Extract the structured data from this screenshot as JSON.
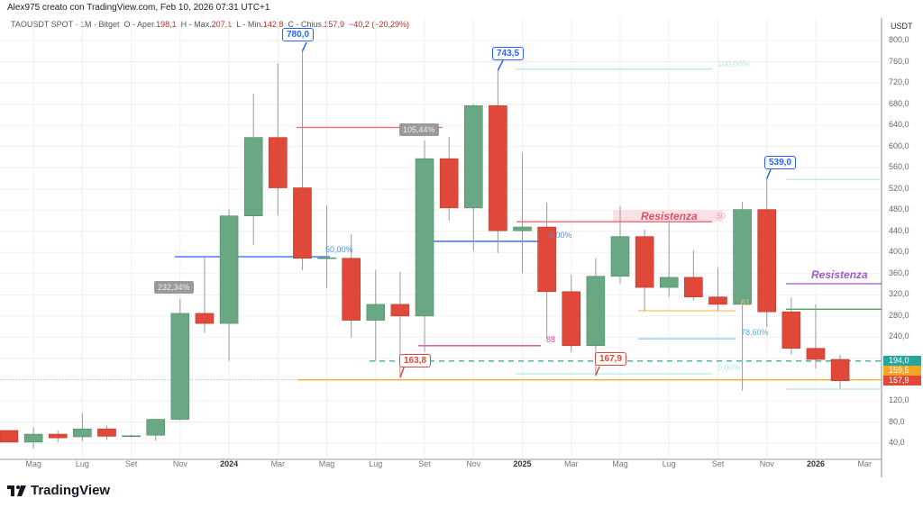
{
  "header": {
    "text": "Alex975 creato con TradingView.com, Feb 10, 2026 07:31 UTC+1"
  },
  "legend": {
    "symbol": "TAOUSDT SPOT · 1M · Bitget",
    "o_label": "O - Aper.",
    "o": "198,1",
    "h_label": "H - Max.",
    "h": "207,1",
    "l_label": "L - Min.",
    "l": "142,8",
    "c_label": "C - Chius.",
    "c": "157,9",
    "change": "−40,2 (−20,29%)"
  },
  "axis": {
    "unit": "USDT",
    "prices": [
      "800,0",
      "760,0",
      "720,0",
      "680,0",
      "640,0",
      "600,0",
      "560,0",
      "520,0",
      "480,0",
      "440,0",
      "400,0",
      "360,0",
      "320,0",
      "280,0",
      "240,0",
      "120,0",
      "80,0",
      "40,0"
    ],
    "months": [
      "Mag",
      "Lug",
      "Set",
      "Nov",
      "2024",
      "Mar",
      "Mag",
      "Lug",
      "Set",
      "Nov",
      "2025",
      "Mar",
      "Mag",
      "Lug",
      "Set",
      "Nov",
      "2026",
      "Mar"
    ]
  },
  "price_tags": [
    {
      "text": "194,0",
      "color": "#26a69a"
    },
    {
      "text": "159,5",
      "color": "#f5a623"
    },
    {
      "text": "157,9",
      "color": "#e0483a"
    }
  ],
  "annotations": {
    "callouts": [
      "780,0",
      "743,5",
      "539,0",
      "163,8",
      "167,9"
    ],
    "pct": [
      "232,34%",
      "105,44%"
    ],
    "fib": [
      "50,00%",
      "0,00%",
      "88",
      "50",
      "78,60%",
      "100,00%",
      "0,00%",
      "61"
    ],
    "resistance": [
      "Resistenza",
      "Resistenza"
    ]
  },
  "colors": {
    "up": "#6aa884",
    "down": "#e0483a"
  },
  "chart_data": {
    "type": "candlestick",
    "timeframe": "1M",
    "ylim": [
      20,
      820
    ],
    "candles": [
      [
        64,
        64,
        42,
        42
      ],
      [
        42,
        70,
        30,
        57
      ],
      [
        57,
        64,
        42,
        50
      ],
      [
        52,
        97,
        44,
        67
      ],
      [
        67,
        73,
        46,
        53
      ],
      [
        53,
        56,
        51,
        54
      ],
      [
        55,
        86,
        45,
        85
      ],
      [
        85,
        312,
        83,
        285
      ],
      [
        285,
        392,
        248,
        266
      ],
      [
        266,
        481,
        195,
        469
      ],
      [
        469,
        700,
        414,
        617
      ],
      [
        617,
        757,
        470,
        522
      ],
      [
        522,
        780,
        367,
        389
      ],
      [
        389,
        489,
        333,
        390
      ],
      [
        389,
        434,
        239,
        272
      ],
      [
        272,
        367,
        195,
        302
      ],
      [
        302,
        363,
        163.8,
        280
      ],
      [
        280,
        611,
        212,
        577
      ],
      [
        577,
        618,
        460,
        484
      ],
      [
        484,
        680,
        402,
        677
      ],
      [
        677,
        743.5,
        399,
        441
      ],
      [
        441,
        588,
        361,
        448
      ],
      [
        448,
        494,
        237,
        326
      ],
      [
        326,
        358,
        212,
        224
      ],
      [
        224,
        389,
        167.9,
        355
      ],
      [
        355,
        487,
        341,
        430
      ],
      [
        430,
        443,
        290,
        334
      ],
      [
        334,
        460,
        316,
        353
      ],
      [
        353,
        404,
        310,
        316
      ],
      [
        316,
        371,
        290,
        302
      ],
      [
        302,
        496,
        139,
        481
      ],
      [
        481,
        539,
        259,
        288
      ],
      [
        288,
        315,
        207,
        219
      ],
      [
        219,
        302,
        181,
        198.1
      ],
      [
        198.1,
        207.1,
        142.8,
        157.9
      ]
    ]
  }
}
